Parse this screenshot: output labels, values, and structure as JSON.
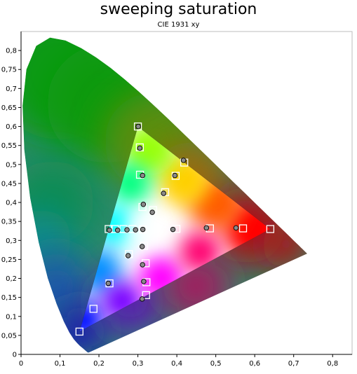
{
  "chart_data": {
    "type": "scatter",
    "title": "sweeping saturation",
    "subtitle": "CIE 1931 xy",
    "xlabel": "",
    "ylabel": "",
    "xlim": [
      0,
      0.85
    ],
    "ylim": [
      0,
      0.85
    ],
    "x_ticks": [
      "0",
      "0,1",
      "0,2",
      "0,3",
      "0,4",
      "0,5",
      "0,6",
      "0,7",
      "0,8"
    ],
    "y_ticks": [
      "0",
      "0,05",
      "0,1",
      "0,15",
      "0,2",
      "0,25",
      "0,3",
      "0,35",
      "0,4",
      "0,45",
      "0,5",
      "0,55",
      "0,6",
      "0,65",
      "0,7",
      "0,75",
      "0,8"
    ],
    "locus": [
      [
        0.1741,
        0.005
      ],
      [
        0.1738,
        0.0049
      ],
      [
        0.1736,
        0.0049
      ],
      [
        0.1733,
        0.0048
      ],
      [
        0.173,
        0.0048
      ],
      [
        0.1726,
        0.0048
      ],
      [
        0.1721,
        0.0048
      ],
      [
        0.1714,
        0.0051
      ],
      [
        0.1703,
        0.0058
      ],
      [
        0.1689,
        0.0069
      ],
      [
        0.1669,
        0.0086
      ],
      [
        0.1644,
        0.0109
      ],
      [
        0.1611,
        0.0138
      ],
      [
        0.1566,
        0.0177
      ],
      [
        0.151,
        0.0227
      ],
      [
        0.144,
        0.0297
      ],
      [
        0.1355,
        0.0399
      ],
      [
        0.1241,
        0.0578
      ],
      [
        0.1096,
        0.0868
      ],
      [
        0.0913,
        0.1327
      ],
      [
        0.0687,
        0.2007
      ],
      [
        0.0454,
        0.295
      ],
      [
        0.0235,
        0.4127
      ],
      [
        0.0082,
        0.5384
      ],
      [
        0.0039,
        0.6548
      ],
      [
        0.0139,
        0.7502
      ],
      [
        0.0389,
        0.812
      ],
      [
        0.0743,
        0.8338
      ],
      [
        0.1142,
        0.8262
      ],
      [
        0.1547,
        0.8059
      ],
      [
        0.1929,
        0.7816
      ],
      [
        0.2296,
        0.7543
      ],
      [
        0.2658,
        0.7243
      ],
      [
        0.3016,
        0.6923
      ],
      [
        0.3373,
        0.6589
      ],
      [
        0.3731,
        0.6245
      ],
      [
        0.4087,
        0.5896
      ],
      [
        0.4441,
        0.5547
      ],
      [
        0.4788,
        0.5202
      ],
      [
        0.5125,
        0.4866
      ],
      [
        0.5448,
        0.4544
      ],
      [
        0.5752,
        0.4242
      ],
      [
        0.6029,
        0.3965
      ],
      [
        0.627,
        0.3725
      ],
      [
        0.6482,
        0.3514
      ],
      [
        0.6658,
        0.334
      ],
      [
        0.6801,
        0.3197
      ],
      [
        0.6915,
        0.3083
      ],
      [
        0.7006,
        0.2993
      ],
      [
        0.7079,
        0.292
      ],
      [
        0.714,
        0.2859
      ],
      [
        0.719,
        0.2809
      ],
      [
        0.723,
        0.277
      ],
      [
        0.726,
        0.274
      ],
      [
        0.7283,
        0.2717
      ],
      [
        0.73,
        0.27
      ],
      [
        0.7347,
        0.2653
      ]
    ],
    "gamut_triangle": [
      [
        0.64,
        0.33
      ],
      [
        0.3,
        0.6
      ],
      [
        0.15,
        0.06
      ]
    ],
    "series": [
      {
        "marker": "square",
        "points": [
          [
            0.3127,
            0.329
          ],
          [
            0.399,
            0.3305
          ],
          [
            0.485,
            0.3318
          ],
          [
            0.57,
            0.3318
          ],
          [
            0.64,
            0.33
          ],
          [
            0.3118,
            0.388
          ],
          [
            0.339,
            0.38
          ],
          [
            0.37,
            0.427
          ],
          [
            0.397,
            0.47
          ],
          [
            0.419,
            0.505
          ],
          [
            0.3054,
            0.473
          ],
          [
            0.305,
            0.545
          ],
          [
            0.3,
            0.6
          ],
          [
            0.286,
            0.33
          ],
          [
            0.263,
            0.33
          ],
          [
            0.241,
            0.33
          ],
          [
            0.225,
            0.33
          ],
          [
            0.277,
            0.264
          ],
          [
            0.227,
            0.187
          ],
          [
            0.186,
            0.12
          ],
          [
            0.15,
            0.06
          ],
          [
            0.316,
            0.286
          ],
          [
            0.32,
            0.24
          ],
          [
            0.322,
            0.19
          ],
          [
            0.321,
            0.156
          ]
        ]
      },
      {
        "marker": "circle",
        "points": [
          [
            0.3127,
            0.329
          ],
          [
            0.39,
            0.329
          ],
          [
            0.476,
            0.333
          ],
          [
            0.552,
            0.333
          ],
          [
            0.314,
            0.395
          ],
          [
            0.337,
            0.374
          ],
          [
            0.366,
            0.424
          ],
          [
            0.395,
            0.471
          ],
          [
            0.417,
            0.511
          ],
          [
            0.312,
            0.471
          ],
          [
            0.305,
            0.543
          ],
          [
            0.301,
            0.6
          ],
          [
            0.294,
            0.328
          ],
          [
            0.272,
            0.328
          ],
          [
            0.248,
            0.327
          ],
          [
            0.227,
            0.327
          ],
          [
            0.275,
            0.26
          ],
          [
            0.224,
            0.187
          ],
          [
            0.311,
            0.284
          ],
          [
            0.312,
            0.236
          ],
          [
            0.315,
            0.192
          ],
          [
            0.311,
            0.146
          ]
        ]
      }
    ],
    "grid": false
  }
}
